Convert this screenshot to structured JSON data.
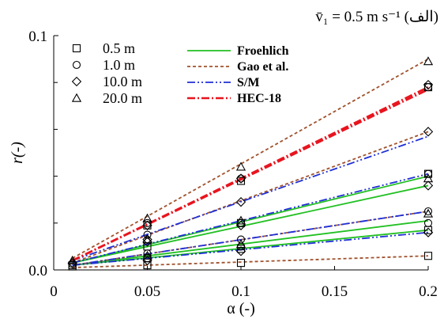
{
  "chart_data": {
    "type": "line",
    "title": "v̄₁ = 0.5 m s⁻¹ (الف)",
    "xlabel": "α (-)",
    "ylabel": "r(-)",
    "xlim": [
      0,
      0.2
    ],
    "ylim": [
      0,
      0.1
    ],
    "x_ticks": [
      "0",
      "0.05",
      "0.1",
      "0.15",
      "0.2"
    ],
    "y_ticks": [
      "0.0",
      "0.1"
    ],
    "grid": false,
    "legend_placement": "top-left",
    "marker_legend": [
      {
        "symbol": "square",
        "label": "0.5 m"
      },
      {
        "symbol": "circle",
        "label": "1.0 m"
      },
      {
        "symbol": "diamond",
        "label": "10.0 m"
      },
      {
        "symbol": "triangle",
        "label": "20.0 m"
      }
    ],
    "series": [
      {
        "name": "Froehlich",
        "style": "solid",
        "color": "#22c022",
        "lines": [
          {
            "points": [
              [
                0.01,
                0.003
              ],
              [
                0.2,
                0.036
              ]
            ]
          },
          {
            "points": [
              [
                0.01,
                0.003
              ],
              [
                0.2,
                0.04
              ]
            ]
          },
          {
            "points": [
              [
                0.01,
                0.002
              ],
              [
                0.2,
                0.017
              ]
            ]
          },
          {
            "points": [
              [
                0.01,
                0.002
              ],
              [
                0.2,
                0.021
              ]
            ]
          }
        ]
      },
      {
        "name": "Gao et al.",
        "style": "dashed",
        "color": "#a0522d",
        "lines": [
          {
            "points": [
              [
                0.01,
                0.001
              ],
              [
                0.2,
                0.006
              ]
            ]
          },
          {
            "points": [
              [
                0.01,
                0.002
              ],
              [
                0.2,
                0.025
              ]
            ]
          },
          {
            "points": [
              [
                0.01,
                0.003
              ],
              [
                0.2,
                0.059
              ]
            ]
          },
          {
            "points": [
              [
                0.01,
                0.005
              ],
              [
                0.2,
                0.09
              ]
            ]
          }
        ]
      },
      {
        "name": "S/M",
        "style": "dashdotdot",
        "color": "#1f2fd6",
        "lines": [
          {
            "points": [
              [
                0.01,
                0.002
              ],
              [
                0.2,
                0.016
              ]
            ]
          },
          {
            "points": [
              [
                0.01,
                0.002
              ],
              [
                0.2,
                0.025
              ]
            ]
          },
          {
            "points": [
              [
                0.01,
                0.003
              ],
              [
                0.2,
                0.041
              ]
            ]
          },
          {
            "points": [
              [
                0.01,
                0.004
              ],
              [
                0.2,
                0.057
              ]
            ]
          }
        ]
      },
      {
        "name": "HEC-18",
        "style": "dashdot",
        "color": "#e8141e",
        "lines": [
          {
            "points": [
              [
                0.01,
                0.004
              ],
              [
                0.2,
                0.077
              ]
            ]
          },
          {
            "points": [
              [
                0.01,
                0.004
              ],
              [
                0.2,
                0.078
              ]
            ]
          }
        ]
      }
    ],
    "markers": [
      {
        "symbol": "square",
        "points": [
          [
            0.01,
            0.0015
          ],
          [
            0.05,
            0.002
          ],
          [
            0.1,
            0.003
          ],
          [
            0.2,
            0.006
          ],
          [
            0.01,
            0.002
          ],
          [
            0.05,
            0.005
          ],
          [
            0.1,
            0.009
          ],
          [
            0.2,
            0.017
          ],
          [
            0.05,
            0.01
          ],
          [
            0.1,
            0.02
          ],
          [
            0.2,
            0.041
          ],
          [
            0.05,
            0.019
          ],
          [
            0.1,
            0.038
          ],
          [
            0.2,
            0.078
          ]
        ]
      },
      {
        "symbol": "circle",
        "points": [
          [
            0.01,
            0.0025
          ],
          [
            0.05,
            0.005
          ],
          [
            0.1,
            0.01
          ],
          [
            0.2,
            0.02
          ],
          [
            0.05,
            0.007
          ],
          [
            0.1,
            0.013
          ],
          [
            0.2,
            0.025
          ],
          [
            0.05,
            0.015
          ],
          [
            0.1,
            0.02
          ],
          [
            0.2,
            0.041
          ],
          [
            0.05,
            0.02
          ],
          [
            0.1,
            0.039
          ],
          [
            0.2,
            0.078
          ]
        ]
      },
      {
        "symbol": "diamond",
        "points": [
          [
            0.01,
            0.003
          ],
          [
            0.05,
            0.004
          ],
          [
            0.1,
            0.008
          ],
          [
            0.2,
            0.016
          ],
          [
            0.05,
            0.012
          ],
          [
            0.1,
            0.019
          ],
          [
            0.2,
            0.036
          ],
          [
            0.05,
            0.013
          ],
          [
            0.1,
            0.029
          ],
          [
            0.2,
            0.059
          ],
          [
            0.05,
            0.019
          ],
          [
            0.1,
            0.039
          ],
          [
            0.2,
            0.079
          ]
        ]
      },
      {
        "symbol": "triangle",
        "points": [
          [
            0.01,
            0.004
          ],
          [
            0.05,
            0.006
          ],
          [
            0.1,
            0.011
          ],
          [
            0.2,
            0.024
          ],
          [
            0.05,
            0.013
          ],
          [
            0.1,
            0.021
          ],
          [
            0.2,
            0.039
          ],
          [
            0.05,
            0.022
          ],
          [
            0.1,
            0.044
          ],
          [
            0.2,
            0.089
          ]
        ]
      }
    ]
  }
}
